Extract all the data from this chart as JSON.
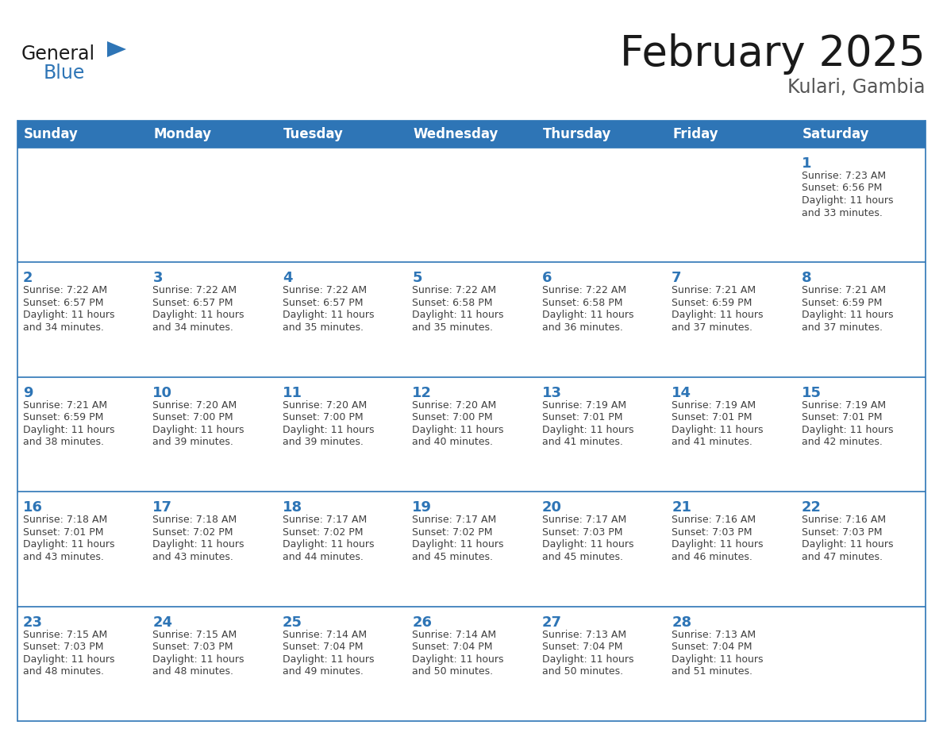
{
  "title": "February 2025",
  "subtitle": "Kulari, Gambia",
  "days_of_week": [
    "Sunday",
    "Monday",
    "Tuesday",
    "Wednesday",
    "Thursday",
    "Friday",
    "Saturday"
  ],
  "header_bg_color": "#2e75b6",
  "header_text_color": "#ffffff",
  "cell_bg_color": "#ffffff",
  "border_color": "#2e75b6",
  "day_number_color": "#2e75b6",
  "cell_text_color": "#404040",
  "title_color": "#1a1a1a",
  "subtitle_color": "#555555",
  "logo_general_color": "#1a1a1a",
  "logo_blue_color": "#2e75b6",
  "calendar_data": [
    [
      null,
      null,
      null,
      null,
      null,
      null,
      {
        "day": 1,
        "sunrise": "7:23 AM",
        "sunset": "6:56 PM",
        "daylight_min": "33"
      }
    ],
    [
      {
        "day": 2,
        "sunrise": "7:22 AM",
        "sunset": "6:57 PM",
        "daylight_min": "34"
      },
      {
        "day": 3,
        "sunrise": "7:22 AM",
        "sunset": "6:57 PM",
        "daylight_min": "34"
      },
      {
        "day": 4,
        "sunrise": "7:22 AM",
        "sunset": "6:57 PM",
        "daylight_min": "35"
      },
      {
        "day": 5,
        "sunrise": "7:22 AM",
        "sunset": "6:58 PM",
        "daylight_min": "35"
      },
      {
        "day": 6,
        "sunrise": "7:22 AM",
        "sunset": "6:58 PM",
        "daylight_min": "36"
      },
      {
        "day": 7,
        "sunrise": "7:21 AM",
        "sunset": "6:59 PM",
        "daylight_min": "37"
      },
      {
        "day": 8,
        "sunrise": "7:21 AM",
        "sunset": "6:59 PM",
        "daylight_min": "37"
      }
    ],
    [
      {
        "day": 9,
        "sunrise": "7:21 AM",
        "sunset": "6:59 PM",
        "daylight_min": "38"
      },
      {
        "day": 10,
        "sunrise": "7:20 AM",
        "sunset": "7:00 PM",
        "daylight_min": "39"
      },
      {
        "day": 11,
        "sunrise": "7:20 AM",
        "sunset": "7:00 PM",
        "daylight_min": "39"
      },
      {
        "day": 12,
        "sunrise": "7:20 AM",
        "sunset": "7:00 PM",
        "daylight_min": "40"
      },
      {
        "day": 13,
        "sunrise": "7:19 AM",
        "sunset": "7:01 PM",
        "daylight_min": "41"
      },
      {
        "day": 14,
        "sunrise": "7:19 AM",
        "sunset": "7:01 PM",
        "daylight_min": "41"
      },
      {
        "day": 15,
        "sunrise": "7:19 AM",
        "sunset": "7:01 PM",
        "daylight_min": "42"
      }
    ],
    [
      {
        "day": 16,
        "sunrise": "7:18 AM",
        "sunset": "7:01 PM",
        "daylight_min": "43"
      },
      {
        "day": 17,
        "sunrise": "7:18 AM",
        "sunset": "7:02 PM",
        "daylight_min": "43"
      },
      {
        "day": 18,
        "sunrise": "7:17 AM",
        "sunset": "7:02 PM",
        "daylight_min": "44"
      },
      {
        "day": 19,
        "sunrise": "7:17 AM",
        "sunset": "7:02 PM",
        "daylight_min": "45"
      },
      {
        "day": 20,
        "sunrise": "7:17 AM",
        "sunset": "7:03 PM",
        "daylight_min": "45"
      },
      {
        "day": 21,
        "sunrise": "7:16 AM",
        "sunset": "7:03 PM",
        "daylight_min": "46"
      },
      {
        "day": 22,
        "sunrise": "7:16 AM",
        "sunset": "7:03 PM",
        "daylight_min": "47"
      }
    ],
    [
      {
        "day": 23,
        "sunrise": "7:15 AM",
        "sunset": "7:03 PM",
        "daylight_min": "48"
      },
      {
        "day": 24,
        "sunrise": "7:15 AM",
        "sunset": "7:03 PM",
        "daylight_min": "48"
      },
      {
        "day": 25,
        "sunrise": "7:14 AM",
        "sunset": "7:04 PM",
        "daylight_min": "49"
      },
      {
        "day": 26,
        "sunrise": "7:14 AM",
        "sunset": "7:04 PM",
        "daylight_min": "50"
      },
      {
        "day": 27,
        "sunrise": "7:13 AM",
        "sunset": "7:04 PM",
        "daylight_min": "50"
      },
      {
        "day": 28,
        "sunrise": "7:13 AM",
        "sunset": "7:04 PM",
        "daylight_min": "51"
      },
      null
    ]
  ],
  "fig_width": 11.88,
  "fig_height": 9.18,
  "dpi": 100
}
